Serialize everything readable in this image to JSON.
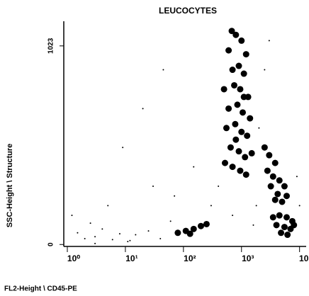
{
  "chart_data": {
    "type": "scatter",
    "title": "LEUCOCYTES",
    "x_label": "FL2-Height \\ CD45-PE",
    "y_label": "SSC-Height \\ Structure",
    "x_log": true,
    "xlim": [
      1,
      13000
    ],
    "ylim": [
      -10,
      1150
    ],
    "xticks": [
      {
        "value": 1,
        "label": "10⁰"
      },
      {
        "value": 10,
        "label": "10¹"
      },
      {
        "value": 100,
        "label": "10²"
      },
      {
        "value": 1000,
        "label": "10³"
      },
      {
        "value": 10000,
        "label": "10⁴"
      }
    ],
    "yticks": [
      0,
      1023
    ],
    "series": [
      {
        "color": "#000000",
        "marker_size": 9,
        "x": [
          600,
          800,
          1000,
          1200,
          700,
          900,
          1100,
          500,
          750,
          950,
          1300,
          600,
          850,
          1050,
          1400,
          550,
          780,
          1000,
          1250,
          650,
          900,
          1150,
          1500,
          520,
          700,
          950,
          1200,
          800,
          1100,
          680,
          2500,
          3000,
          3800,
          2800,
          3500,
          4500,
          5500,
          3200,
          4200,
          6000,
          5000,
          3800,
          3500,
          4500,
          6000,
          7500,
          4000,
          5500,
          7000,
          4800,
          6200,
          8000,
          80,
          110,
          150,
          200,
          250,
          130
        ],
        "values": [
          1000,
          1080,
          1050,
          980,
          900,
          920,
          880,
          800,
          820,
          800,
          760,
          700,
          720,
          680,
          650,
          600,
          620,
          580,
          560,
          500,
          480,
          450,
          470,
          420,
          400,
          380,
          360,
          540,
          760,
          1100,
          500,
          460,
          420,
          380,
          350,
          330,
          300,
          300,
          260,
          250,
          220,
          230,
          140,
          150,
          140,
          120,
          100,
          90,
          80,
          60,
          50,
          100,
          60,
          70,
          80,
          95,
          105,
          55
        ]
      },
      {
        "color": "#000000",
        "marker_size": 2,
        "x": [
          1.5,
          2,
          3,
          4,
          6,
          2.5,
          8,
          15,
          12,
          25,
          40,
          60,
          5,
          30,
          70,
          300,
          400,
          2000,
          1800,
          9000,
          10000,
          2500,
          3000,
          1.2,
          20,
          45,
          9,
          150,
          700,
          1600,
          11,
          3
        ],
        "values": [
          60,
          30,
          40,
          80,
          25,
          110,
          55,
          50,
          20,
          70,
          30,
          120,
          200,
          300,
          250,
          200,
          300,
          600,
          200,
          350,
          200,
          900,
          1050,
          150,
          700,
          900,
          500,
          400,
          150,
          100,
          15,
          5
        ]
      }
    ]
  }
}
